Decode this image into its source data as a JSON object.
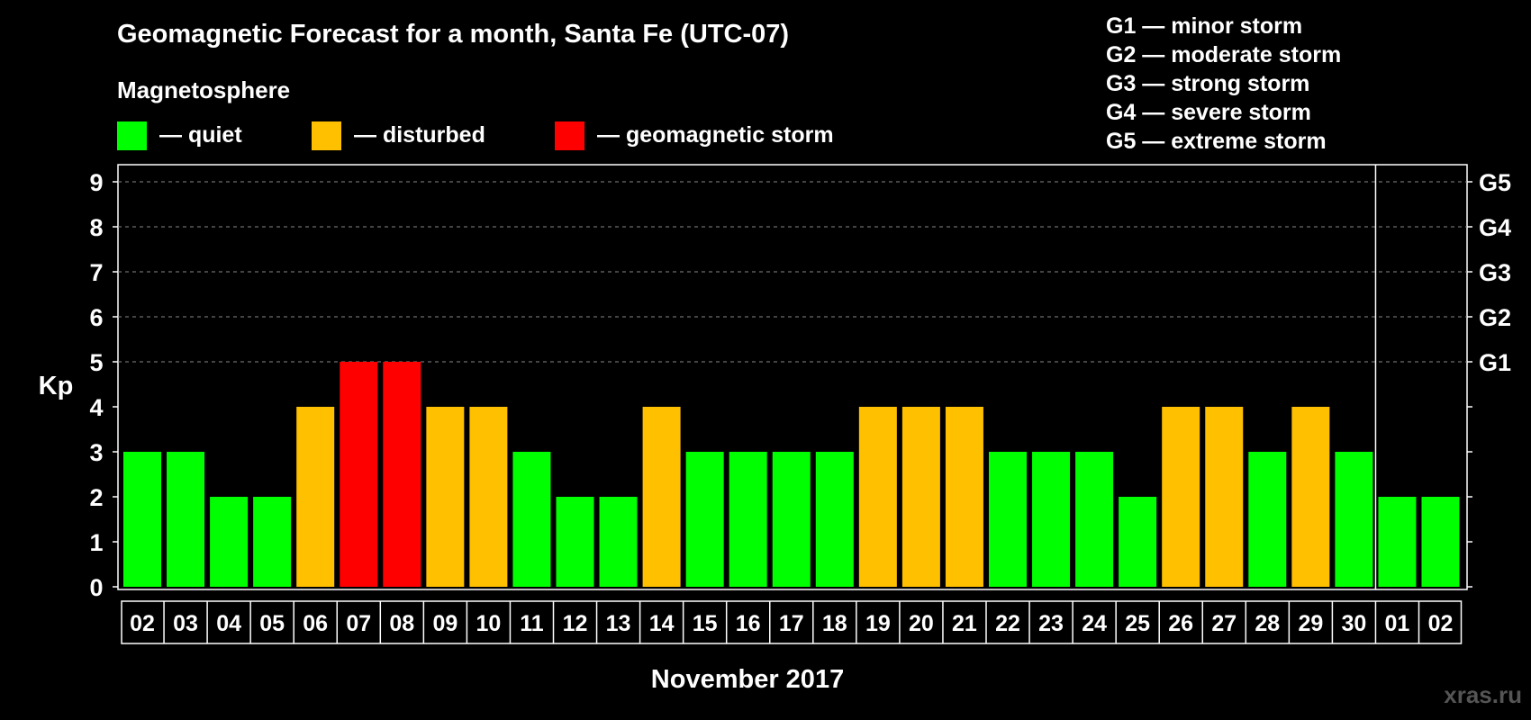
{
  "chart_data": {
    "type": "bar",
    "title": "Geomagnetic Forecast for a month, Santa Fe (UTC-07)",
    "xlabel": "November 2017",
    "ylabel": "Kp",
    "ylim": [
      0,
      9
    ],
    "yticks": [
      "0",
      "1",
      "2",
      "3",
      "4",
      "5",
      "6",
      "7",
      "8",
      "9"
    ],
    "categories": [
      "02",
      "03",
      "04",
      "05",
      "06",
      "07",
      "08",
      "09",
      "10",
      "11",
      "12",
      "13",
      "14",
      "15",
      "16",
      "17",
      "18",
      "19",
      "20",
      "21",
      "22",
      "23",
      "24",
      "25",
      "26",
      "27",
      "28",
      "29",
      "30",
      "01",
      "02"
    ],
    "values": [
      3,
      3,
      2,
      2,
      4,
      5,
      5,
      4,
      4,
      3,
      2,
      2,
      4,
      3,
      3,
      3,
      3,
      4,
      4,
      4,
      3,
      3,
      3,
      2,
      4,
      4,
      3,
      4,
      3,
      2,
      2
    ],
    "month_separator_after_index": 28,
    "grid": "dashed at Kp 5-9",
    "g_levels": [
      {
        "kp": 5,
        "label": "G1"
      },
      {
        "kp": 6,
        "label": "G2"
      },
      {
        "kp": 7,
        "label": "G3"
      },
      {
        "kp": 8,
        "label": "G4"
      },
      {
        "kp": 9,
        "label": "G5"
      }
    ],
    "legend_title": "Magnetosphere",
    "legend": [
      {
        "label": "— quiet",
        "color": "#00ff00"
      },
      {
        "label": "— disturbed",
        "color": "#ffc000"
      },
      {
        "label": "— geomagnetic storm",
        "color": "#ff0000"
      }
    ],
    "storm_scale": [
      "G1 — minor storm",
      "G2 — moderate storm",
      "G3 — strong storm",
      "G4 — severe storm",
      "G5 — extreme storm"
    ],
    "colors": {
      "quiet": "#00ff00",
      "disturbed": "#ffc000",
      "storm": "#ff0000"
    },
    "watermark": "xras.ru"
  }
}
